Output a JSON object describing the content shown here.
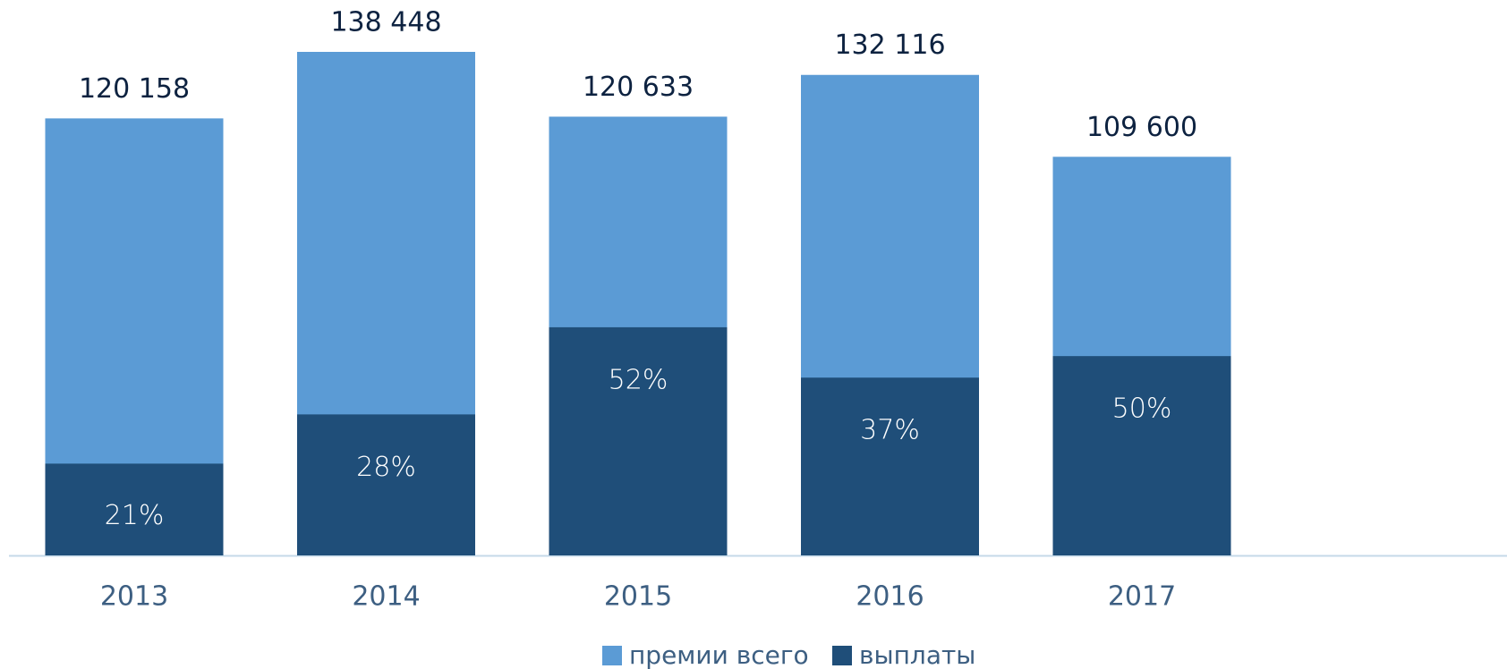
{
  "chart_data": {
    "type": "bar",
    "categories": [
      "2013",
      "2014",
      "2015",
      "2016",
      "2017"
    ],
    "series": [
      {
        "name": "премии всего",
        "color": "#5b9bd5",
        "values": [
          120158,
          138448,
          120633,
          132116,
          109600
        ],
        "value_labels": [
          "120 158",
          "138 448",
          "120 633",
          "132 116",
          "109 600"
        ]
      },
      {
        "name": "выплаты",
        "color": "#1f4e79",
        "values": [
          21,
          28,
          52,
          37,
          50
        ],
        "value_labels": [
          "21%",
          "28%",
          "52%",
          "37%",
          "50%"
        ]
      }
    ]
  }
}
